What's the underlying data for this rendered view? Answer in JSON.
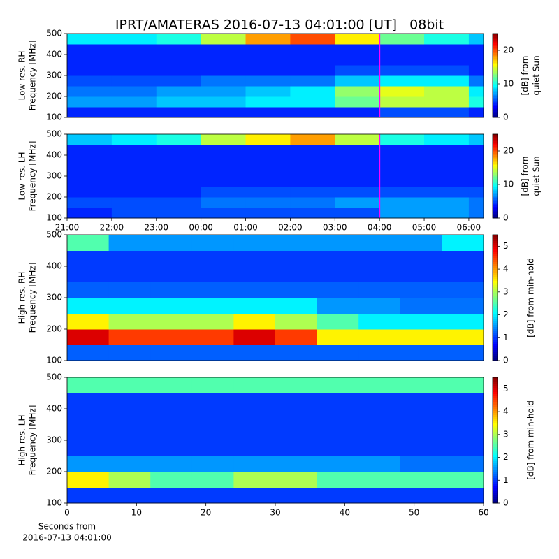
{
  "title": "IPRT/AMATERAS 2016-07-13 04:01:00 [UT]   08bit",
  "chart_data": [
    {
      "type": "heatmap",
      "ylabel": [
        "Low res. RH",
        "Frequency [MHz]"
      ],
      "colorbar_label": [
        "[dB] from",
        "quiet Sun"
      ],
      "colormap": "jet",
      "xlim": [
        0,
        9.33
      ],
      "ylim": [
        100,
        500
      ],
      "yticks": [
        100,
        200,
        300,
        400,
        500
      ],
      "clim": [
        0,
        25
      ],
      "cticks": [
        0,
        10,
        20
      ],
      "xbins": [
        0,
        1,
        2,
        3,
        4,
        5,
        6,
        7,
        8,
        9,
        9.33
      ],
      "ybins": [
        100,
        150,
        200,
        250,
        300,
        350,
        400,
        450,
        500
      ],
      "z": [
        [
          4,
          4,
          4,
          4,
          4,
          4,
          4,
          5,
          5,
          4
        ],
        [
          7,
          7,
          8,
          8,
          9,
          9,
          12,
          14,
          14,
          10
        ],
        [
          6,
          6,
          7,
          7,
          8,
          9,
          13,
          15,
          14,
          9
        ],
        [
          5,
          5,
          5,
          6,
          6,
          6,
          8,
          9,
          9,
          6
        ],
        [
          4,
          4,
          4,
          4,
          4,
          4,
          5,
          5,
          5,
          4
        ],
        [
          4,
          4,
          4,
          4,
          4,
          4,
          4,
          4,
          4,
          4
        ],
        [
          4,
          4,
          4,
          4,
          4,
          4,
          4,
          4,
          4,
          4
        ],
        [
          9,
          9,
          10,
          14,
          18,
          20,
          16,
          12,
          10,
          8
        ]
      ],
      "markers": [
        {
          "x": 7,
          "color": "#ff00ff"
        }
      ]
    },
    {
      "type": "heatmap",
      "ylabel": [
        "Low res. LH",
        "Frequency [MHz]"
      ],
      "colorbar_label": [
        "[dB] from",
        "quiet Sun"
      ],
      "colormap": "jet",
      "xlim": [
        0,
        9.33
      ],
      "ylim": [
        100,
        500
      ],
      "yticks": [
        100,
        200,
        300,
        400,
        500
      ],
      "xticks": [
        {
          "value": 0,
          "label": "21:00"
        },
        {
          "value": 1,
          "label": "22:00"
        },
        {
          "value": 2,
          "label": "23:00"
        },
        {
          "value": 3,
          "label": "00:00"
        },
        {
          "value": 4,
          "label": "01:00"
        },
        {
          "value": 5,
          "label": "02:00"
        },
        {
          "value": 6,
          "label": "03:00"
        },
        {
          "value": 7,
          "label": "04:00"
        },
        {
          "value": 8,
          "label": "05:00"
        },
        {
          "value": 9,
          "label": "06:00"
        }
      ],
      "clim": [
        0,
        25
      ],
      "cticks": [
        0,
        10,
        20
      ],
      "xbins": [
        0,
        1,
        2,
        3,
        4,
        5,
        6,
        7,
        8,
        9,
        9.33
      ],
      "ybins": [
        100,
        150,
        200,
        250,
        300,
        350,
        400,
        450,
        500
      ],
      "z": [
        [
          4,
          5,
          5,
          5,
          5,
          5,
          5,
          7,
          7,
          6
        ],
        [
          5,
          5,
          5,
          6,
          6,
          6,
          7,
          7,
          7,
          6
        ],
        [
          4,
          4,
          4,
          5,
          5,
          5,
          5,
          5,
          5,
          5
        ],
        [
          4,
          4,
          4,
          4,
          4,
          4,
          4,
          4,
          4,
          4
        ],
        [
          4,
          4,
          4,
          4,
          4,
          4,
          4,
          4,
          4,
          4
        ],
        [
          4,
          4,
          4,
          4,
          4,
          4,
          4,
          4,
          4,
          4
        ],
        [
          4,
          4,
          4,
          4,
          4,
          4,
          4,
          4,
          4,
          4
        ],
        [
          8,
          9,
          10,
          14,
          16,
          18,
          14,
          10,
          9,
          8
        ]
      ],
      "markers": [
        {
          "x": 7,
          "color": "#ff00ff"
        }
      ]
    },
    {
      "type": "heatmap",
      "ylabel": [
        "High res. RH",
        "Frequency [MHz]"
      ],
      "colorbar_label": [
        "[dB] from min-hold"
      ],
      "colormap": "jet",
      "xlim": [
        0,
        60
      ],
      "ylim": [
        100,
        500
      ],
      "yticks": [
        100,
        200,
        300,
        400,
        500
      ],
      "clim": [
        0,
        5.5
      ],
      "cticks": [
        0,
        1,
        2,
        3,
        4,
        5
      ],
      "xbins": [
        0,
        6,
        12,
        18,
        24,
        30,
        36,
        42,
        48,
        54,
        60
      ],
      "ybins": [
        100,
        150,
        200,
        250,
        300,
        350,
        400,
        450,
        500
      ],
      "z": [
        [
          1.2,
          1.2,
          1.2,
          1.2,
          1.2,
          1.2,
          1.2,
          1.2,
          1.2,
          1.2
        ],
        [
          5,
          4.5,
          4.5,
          4.5,
          5,
          4.5,
          3.5,
          3.5,
          3.5,
          3.5
        ],
        [
          3.5,
          3,
          3,
          3,
          3.5,
          3,
          2.5,
          2,
          2,
          2
        ],
        [
          2,
          2,
          2,
          2,
          2,
          2,
          1.5,
          1.5,
          1.3,
          1.3
        ],
        [
          1.2,
          1.2,
          1.2,
          1.2,
          1.2,
          1.2,
          1.2,
          1.2,
          1.2,
          1.2
        ],
        [
          1,
          1,
          1,
          1,
          1,
          1,
          1,
          1,
          1,
          1
        ],
        [
          1,
          1,
          1,
          1,
          1,
          1,
          1,
          1,
          1,
          1
        ],
        [
          2.5,
          1.5,
          1.5,
          1.5,
          1.5,
          1.5,
          1.5,
          1.5,
          1.5,
          2
        ]
      ]
    },
    {
      "type": "heatmap",
      "ylabel": [
        "High res. LH",
        "Frequency [MHz]"
      ],
      "colorbar_label": [
        "[dB] from min-hold"
      ],
      "xlabel": [
        "Seconds from",
        "2016-07-13 04:01:00"
      ],
      "colormap": "jet",
      "xlim": [
        0,
        60
      ],
      "ylim": [
        100,
        500
      ],
      "yticks": [
        100,
        200,
        300,
        400,
        500
      ],
      "xticks": [
        0,
        10,
        20,
        30,
        40,
        50,
        60
      ],
      "clim": [
        0,
        5.5
      ],
      "cticks": [
        0,
        1,
        2,
        3,
        4,
        5
      ],
      "xbins": [
        0,
        6,
        12,
        18,
        24,
        30,
        36,
        42,
        48,
        54,
        60
      ],
      "ybins": [
        100,
        150,
        200,
        250,
        300,
        350,
        400,
        450,
        500
      ],
      "z": [
        [
          1,
          1,
          1,
          1,
          1,
          1,
          1,
          1,
          1,
          1
        ],
        [
          3.5,
          3,
          2.5,
          2.5,
          3,
          3,
          2.5,
          2.5,
          2.5,
          2.5
        ],
        [
          1.5,
          1.5,
          1.5,
          1.5,
          1.5,
          1.5,
          1.5,
          1.5,
          1.3,
          1.3
        ],
        [
          1,
          1,
          1,
          1,
          1,
          1,
          1,
          1,
          1,
          1
        ],
        [
          1,
          1,
          1,
          1,
          1,
          1,
          1,
          1,
          1,
          1
        ],
        [
          1,
          1,
          1,
          1,
          1,
          1,
          1,
          1,
          1,
          1
        ],
        [
          1,
          1,
          1,
          1,
          1,
          1,
          1,
          1,
          1,
          1
        ],
        [
          2.5,
          2.5,
          2.5,
          2.5,
          2.5,
          2.5,
          2.5,
          2.5,
          2.5,
          2.5
        ]
      ]
    }
  ]
}
